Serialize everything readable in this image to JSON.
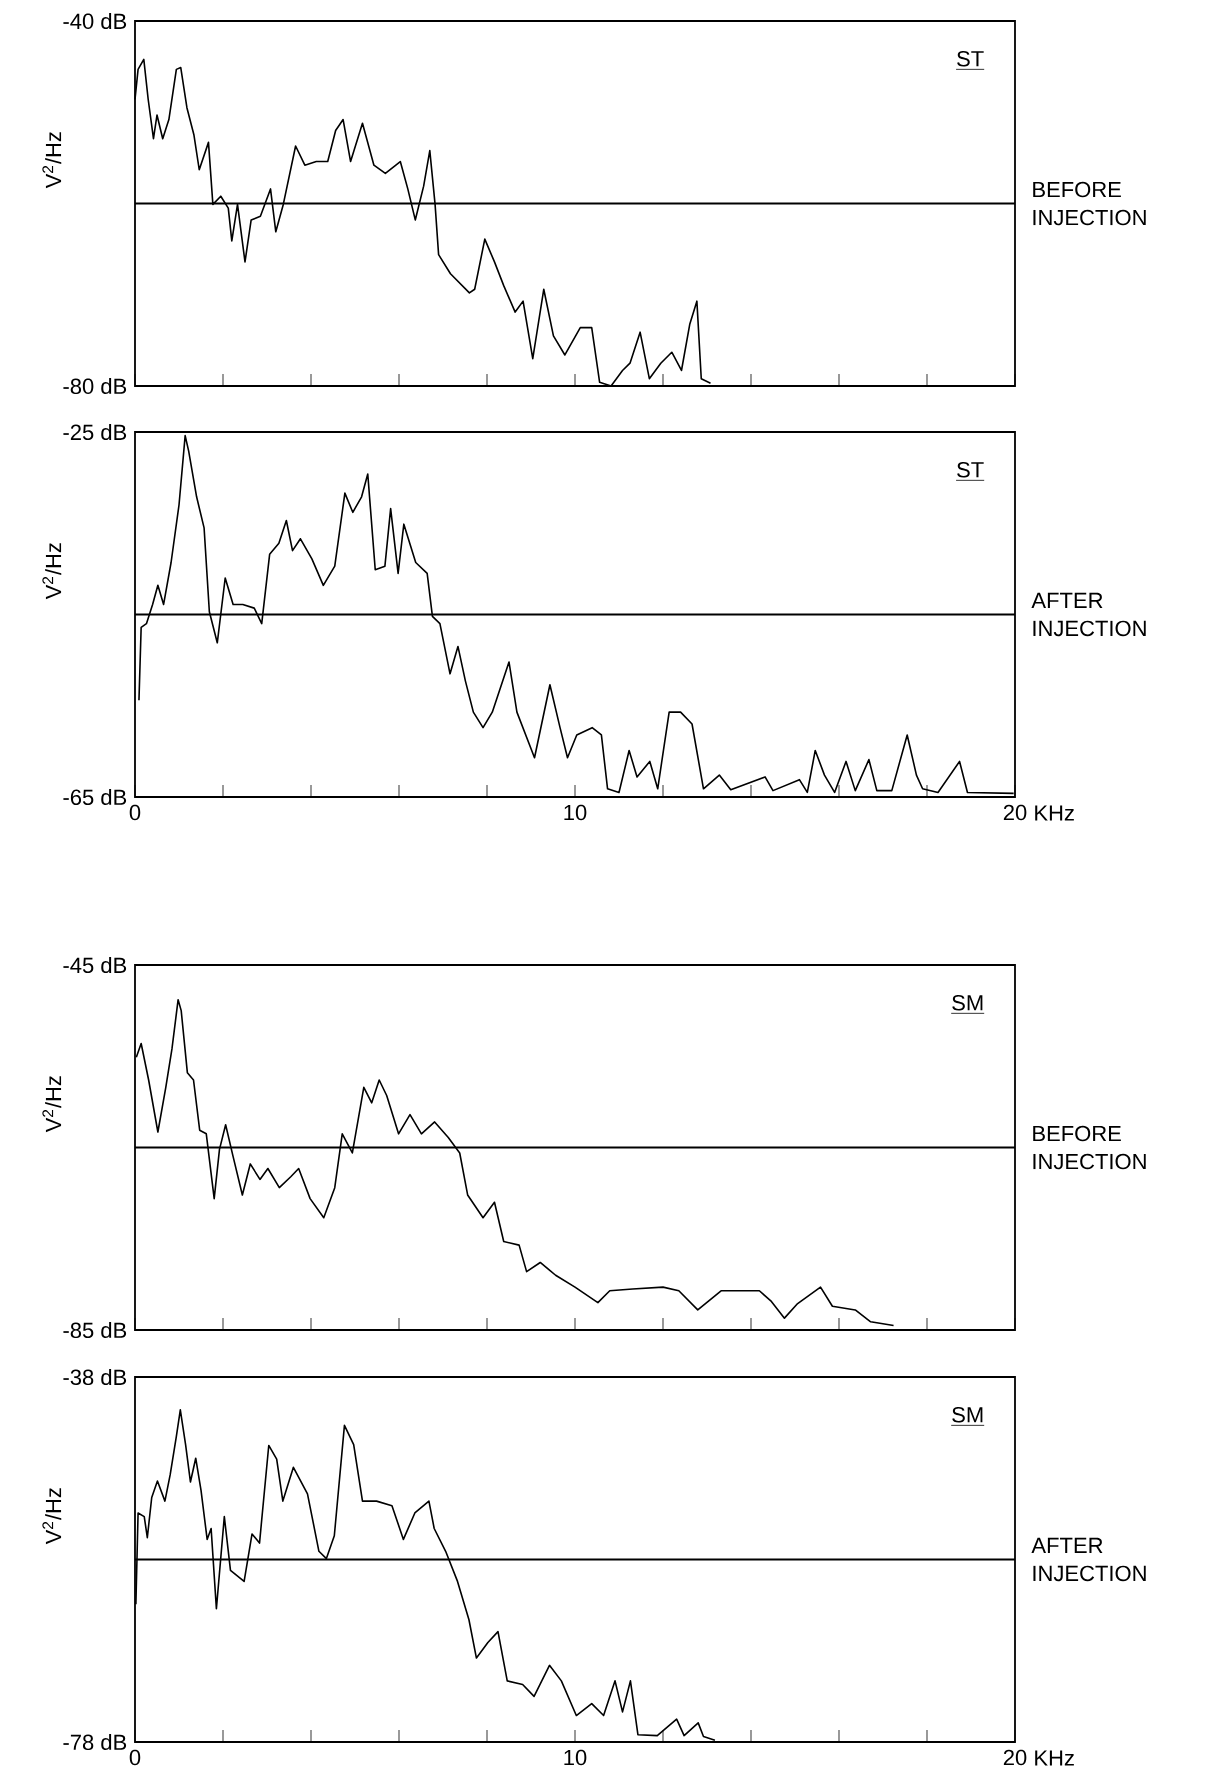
{
  "chart_data": [
    {
      "type": "line",
      "ylabel": "V$^{2}$/Hz",
      "annotations": [
        "ST",
        "BEFORE INJECTION"
      ],
      "color": "#000000",
      "tick_labels": "y",
      "x": [
        0,
        0.07,
        0.2,
        0.3,
        0.42,
        0.5,
        0.63,
        0.77,
        0.94,
        1.04,
        1.18,
        1.34,
        1.46,
        1.67,
        1.77,
        1.95,
        2.12,
        2.2,
        2.33,
        2.5,
        2.64,
        2.85,
        3.08,
        3.2,
        3.37,
        3.65,
        3.86,
        4.12,
        4.38,
        4.56,
        4.73,
        4.9,
        5.17,
        5.43,
        5.69,
        6.03,
        6.2,
        6.37,
        6.56,
        6.7,
        6.82,
        6.9,
        7.17,
        7.6,
        7.72,
        7.95,
        8.17,
        8.38,
        8.64,
        8.82,
        9.04,
        9.29,
        9.51,
        9.77,
        10.12,
        10.38,
        10.56,
        10.82,
        11.08,
        11.25,
        11.48,
        11.69,
        11.95,
        12.2,
        12.42,
        12.61,
        12.77,
        12.87,
        13.08
      ],
      "values": [
        -48.6,
        -45.3,
        -44.2,
        -48.6,
        -52.9,
        -50.3,
        -52.9,
        -50.8,
        -45.3,
        -45.1,
        -49.5,
        -52.5,
        -56.3,
        -53.3,
        -60.1,
        -59.2,
        -60.5,
        -64.1,
        -60.1,
        -66.4,
        -61.8,
        -61.4,
        -58.4,
        -63.1,
        -60.1,
        -53.7,
        -55.8,
        -55.4,
        -55.4,
        -52,
        -50.8,
        -55.4,
        -51.2,
        -55.8,
        -56.7,
        -55.4,
        -58.4,
        -61.8,
        -58.1,
        -54.2,
        -60.1,
        -65.6,
        -67.7,
        -69.8,
        -69.4,
        -63.9,
        -66.4,
        -69,
        -71.9,
        -70.7,
        -77,
        -69.4,
        -74.5,
        -76.6,
        -73.6,
        -73.6,
        -79.6,
        -80,
        -78.3,
        -77.5,
        -74.1,
        -79.2,
        -77.5,
        -76.3,
        -78.3,
        -73.2,
        -70.7,
        -79.2,
        -79.7
      ],
      "xlim": [
        0,
        20
      ],
      "ylim": [
        -80,
        -40
      ],
      "xticks": [
        0,
        {
          "value": 2,
          "label": null
        },
        {
          "value": 4,
          "label": null
        },
        {
          "value": 6,
          "label": null
        },
        {
          "value": 8,
          "label": null
        },
        10,
        {
          "value": 12,
          "label": null
        },
        {
          "value": 14,
          "label": null
        },
        {
          "value": 16,
          "label": null
        },
        {
          "value": 18,
          "label": null
        },
        20
      ],
      "yticks": [
        {
          "value": -80,
          "label": "-80 dB"
        },
        {
          "value": -40,
          "label": "-40 dB"
        }
      ],
      "ref_lines": [
        {
          "axis": "y",
          "value": -60
        }
      ]
    },
    {
      "type": "line",
      "ylabel": "V$^{2}$/Hz",
      "xlabel": "KHz",
      "annotations": [
        "ST",
        "AFTER INJECTION"
      ],
      "color": "#000000",
      "x": [
        0.09,
        0.14,
        0.26,
        0.4,
        0.52,
        0.65,
        0.82,
        1.0,
        1.14,
        1.22,
        1.4,
        1.57,
        1.69,
        1.87,
        2.05,
        2.23,
        2.45,
        2.71,
        2.88,
        3.06,
        3.27,
        3.44,
        3.58,
        3.76,
        4.02,
        4.28,
        4.54,
        4.77,
        4.95,
        5.15,
        5.29,
        5.46,
        5.68,
        5.81,
        5.98,
        6.11,
        6.38,
        6.64,
        6.76,
        6.93,
        7.16,
        7.34,
        7.51,
        7.69,
        7.91,
        8.12,
        8.5,
        8.68,
        9.08,
        9.43,
        9.66,
        9.83,
        10.04,
        10.39,
        10.6,
        10.74,
        11.0,
        11.23,
        11.41,
        11.7,
        11.88,
        12.14,
        12.4,
        12.66,
        12.92,
        13.28,
        13.54,
        14.32,
        14.5,
        15.1,
        15.28,
        15.46,
        15.67,
        15.9,
        16.16,
        16.37,
        16.68,
        16.86,
        17.2,
        17.55,
        17.76,
        17.9,
        18.25,
        18.74,
        18.92,
        19.97
      ],
      "values": [
        -54.4,
        -46.4,
        -46,
        -43.9,
        -41.8,
        -43.9,
        -39.3,
        -33,
        -25.4,
        -27.1,
        -32.1,
        -35.5,
        -44.7,
        -48.1,
        -41,
        -43.9,
        -43.9,
        -44.3,
        -46,
        -38.4,
        -37.2,
        -34.7,
        -38,
        -36.7,
        -38.9,
        -41.8,
        -39.7,
        -31.7,
        -33.8,
        -32.1,
        -29.6,
        -40.1,
        -39.7,
        -33.4,
        -40.5,
        -35.1,
        -39.3,
        -40.5,
        -45.2,
        -46,
        -51.5,
        -48.5,
        -52.3,
        -55.7,
        -57.4,
        -55.7,
        -50.2,
        -55.7,
        -60.7,
        -52.7,
        -57.4,
        -60.7,
        -58.2,
        -57.4,
        -58.2,
        -64.1,
        -64.5,
        -59.9,
        -62.8,
        -61.1,
        -64.1,
        -55.7,
        -55.7,
        -57,
        -64.1,
        -62.6,
        -64.2,
        -62.8,
        -64.3,
        -63.1,
        -64.5,
        -59.9,
        -62.6,
        -64.5,
        -61.1,
        -64.3,
        -60.9,
        -64.3,
        -64.3,
        -58.2,
        -62.6,
        -64.1,
        -64.5,
        -61.1,
        -64.5,
        -64.6
      ],
      "xlim": [
        0,
        20
      ],
      "ylim": [
        -65,
        -25
      ],
      "xticks": [
        0,
        {
          "value": 2,
          "label": null
        },
        {
          "value": 4,
          "label": null
        },
        {
          "value": 6,
          "label": null
        },
        {
          "value": 8,
          "label": null
        },
        10,
        {
          "value": 12,
          "label": null
        },
        {
          "value": 14,
          "label": null
        },
        {
          "value": 16,
          "label": null
        },
        {
          "value": 18,
          "label": null
        },
        20
      ],
      "yticks": [
        {
          "value": -65,
          "label": "-65 dB"
        },
        {
          "value": -25,
          "label": "-25 dB"
        }
      ],
      "ref_lines": [
        {
          "axis": "y",
          "value": -45
        }
      ]
    },
    {
      "type": "line",
      "ylabel": "V$^{2}$/Hz",
      "annotations": [
        "SM",
        "BEFORE INJECTION"
      ],
      "color": "#000000",
      "tick_labels": "y",
      "x": [
        0.03,
        0.14,
        0.31,
        0.52,
        0.7,
        0.84,
        0.98,
        1.05,
        1.19,
        1.33,
        1.47,
        1.62,
        1.8,
        1.92,
        2.06,
        2.23,
        2.44,
        2.62,
        2.84,
        3.02,
        3.28,
        3.54,
        3.72,
        3.98,
        4.29,
        4.54,
        4.71,
        4.94,
        5.2,
        5.38,
        5.55,
        5.72,
        5.99,
        6.25,
        6.51,
        6.81,
        7.12,
        7.38,
        7.56,
        7.91,
        8.17,
        8.38,
        8.73,
        8.9,
        9.21,
        9.56,
        10.0,
        10.52,
        10.79,
        11.31,
        12.0,
        12.36,
        12.79,
        13.32,
        13.67,
        14.19,
        14.45,
        14.76,
        15.06,
        15.58,
        15.85,
        16.37,
        16.72,
        17.24
      ],
      "values": [
        -55.1,
        -53.6,
        -57.6,
        -63.3,
        -58.4,
        -54.2,
        -48.8,
        -50,
        -56.8,
        -57.6,
        -63.1,
        -63.5,
        -70.6,
        -65.2,
        -62.5,
        -66,
        -70.2,
        -66.8,
        -68.5,
        -67.3,
        -69.4,
        -68.2,
        -67.3,
        -70.6,
        -72.7,
        -69.4,
        -63.5,
        -65.6,
        -58.4,
        -60.1,
        -57.6,
        -59.3,
        -63.5,
        -61.4,
        -63.5,
        -62.2,
        -63.9,
        -65.6,
        -70.2,
        -72.7,
        -71,
        -75.3,
        -75.7,
        -78.6,
        -77.6,
        -79,
        -80.3,
        -82,
        -80.7,
        -80.5,
        -80.3,
        -80.7,
        -82.8,
        -80.7,
        -80.7,
        -80.7,
        -81.8,
        -83.7,
        -82.1,
        -80.3,
        -82.4,
        -82.8,
        -84.1,
        -84.5
      ],
      "xlim": [
        0,
        20
      ],
      "ylim": [
        -85,
        -45
      ],
      "xticks": [
        0,
        {
          "value": 2,
          "label": null
        },
        {
          "value": 4,
          "label": null
        },
        {
          "value": 6,
          "label": null
        },
        {
          "value": 8,
          "label": null
        },
        10,
        {
          "value": 12,
          "label": null
        },
        {
          "value": 14,
          "label": null
        },
        {
          "value": 16,
          "label": null
        },
        {
          "value": 18,
          "label": null
        },
        20
      ],
      "yticks": [
        {
          "value": -85,
          "label": "-85 dB"
        },
        {
          "value": -45,
          "label": "-45 dB"
        }
      ],
      "ref_lines": [
        {
          "axis": "y",
          "value": -65
        }
      ]
    },
    {
      "type": "line",
      "ylabel": "V$^{2}$/Hz",
      "xlabel": "KHz",
      "annotations": [
        "SM",
        "AFTER INJECTION"
      ],
      "color": "#000000",
      "x": [
        0.02,
        0.07,
        0.21,
        0.28,
        0.38,
        0.51,
        0.68,
        0.8,
        0.94,
        1.03,
        1.15,
        1.26,
        1.38,
        1.5,
        1.64,
        1.73,
        1.85,
        2.03,
        2.17,
        2.48,
        2.66,
        2.83,
        3.04,
        3.22,
        3.36,
        3.6,
        3.92,
        4.18,
        4.35,
        4.53,
        4.76,
        4.97,
        5.17,
        5.49,
        5.84,
        6.1,
        6.36,
        6.68,
        6.8,
        7.06,
        7.33,
        7.59,
        7.76,
        8.02,
        8.25,
        8.46,
        8.81,
        9.07,
        9.42,
        9.69,
        10.03,
        10.38,
        10.65,
        10.91,
        11.08,
        11.26,
        11.43,
        11.87,
        12.31,
        12.48,
        12.8,
        12.92,
        13.18
      ],
      "values": [
        -62.9,
        -52.9,
        -53.3,
        -55.6,
        -51.2,
        -49.4,
        -51.6,
        -48.7,
        -44.5,
        -41.6,
        -45.4,
        -49.5,
        -46.9,
        -50.4,
        -55.8,
        -54.6,
        -63.4,
        -53.3,
        -59.2,
        -60.4,
        -55.2,
        -56.2,
        -45.5,
        -47,
        -51.6,
        -47.9,
        -50.8,
        -57.1,
        -57.9,
        -55.4,
        -43.3,
        -45.4,
        -51.6,
        -51.6,
        -52.1,
        -55.8,
        -52.9,
        -51.6,
        -54.6,
        -57.1,
        -60.4,
        -64.6,
        -68.8,
        -67.1,
        -65.9,
        -71.3,
        -71.7,
        -73,
        -69.6,
        -71.3,
        -75.1,
        -73.8,
        -75.1,
        -71.3,
        -74.7,
        -71.3,
        -77.2,
        -77.3,
        -75.5,
        -77.3,
        -75.9,
        -77.4,
        -77.8
      ],
      "xlim": [
        0,
        20
      ],
      "ylim": [
        -78,
        -38
      ],
      "xticks": [
        0,
        {
          "value": 2,
          "label": null
        },
        {
          "value": 4,
          "label": null
        },
        {
          "value": 6,
          "label": null
        },
        {
          "value": 8,
          "label": null
        },
        10,
        {
          "value": 12,
          "label": null
        },
        {
          "value": 14,
          "label": null
        },
        {
          "value": 16,
          "label": null
        },
        {
          "value": 18,
          "label": null
        },
        20
      ],
      "yticks": [
        {
          "value": -78,
          "label": "-78 dB"
        },
        {
          "value": -38,
          "label": "-38 dB"
        }
      ],
      "ref_lines": [
        {
          "axis": "y",
          "value": -58
        }
      ]
    }
  ]
}
